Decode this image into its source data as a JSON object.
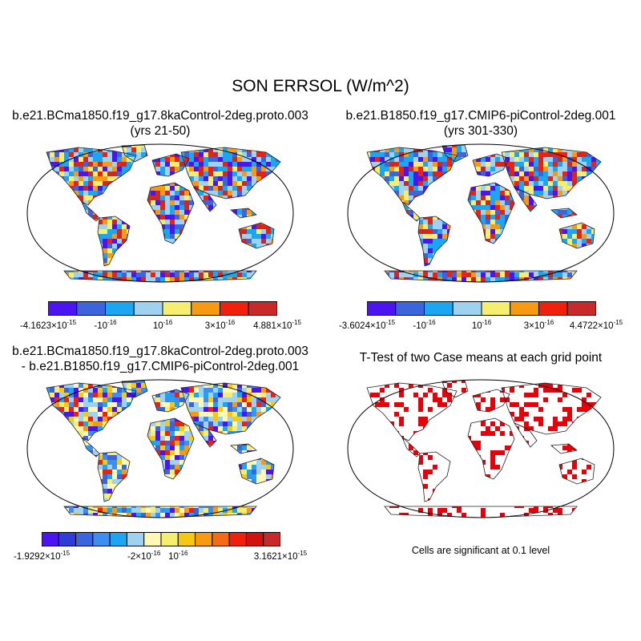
{
  "title": "SON ERRSOL (W/m^2)",
  "panels": [
    {
      "title_line1": "b.e21.BCma1850.f19_g17.8kaControl-2deg.proto.003",
      "title_line2": "(yrs 21-50)",
      "colorbar": {
        "colors": [
          "#4b14f0",
          "#3c64dc",
          "#1aa6f0",
          "#9ed2ee",
          "#f6ee6e",
          "#f79a12",
          "#f0200e",
          "#c82a2a"
        ],
        "labels": [
          {
            "mantissa": "-4.1623×10",
            "exp": "-15"
          },
          {
            "mantissa": "-10",
            "exp": "-16"
          },
          {
            "mantissa": "10",
            "exp": "-16"
          },
          {
            "mantissa": "3×10",
            "exp": "-16"
          },
          {
            "mantissa": "4.881×10",
            "exp": "-15"
          }
        ]
      }
    },
    {
      "title_line1": "b.e21.B1850.f19_g17.CMIP6-piControl-2deg.001",
      "title_line2": "(yrs 301-330)",
      "colorbar": {
        "colors": [
          "#4b14f0",
          "#3c64dc",
          "#1aa6f0",
          "#9ed2ee",
          "#f6ee6e",
          "#f79a12",
          "#f0200e",
          "#c82a2a"
        ],
        "labels": [
          {
            "mantissa": "-3.6024×10",
            "exp": "-15"
          },
          {
            "mantissa": "-10",
            "exp": "-16"
          },
          {
            "mantissa": "10",
            "exp": "-16"
          },
          {
            "mantissa": "3×10",
            "exp": "-16"
          },
          {
            "mantissa": "4.4722×10",
            "exp": "-15"
          }
        ]
      }
    },
    {
      "title_line1": "b.e21.BCma1850.f19_g17.8kaControl-2deg.proto.003",
      "title_line2": "- b.e21.B1850.f19_g17.CMIP6-piControl-2deg.001",
      "colorbar": {
        "colors": [
          "#4b14f0",
          "#2f3cd8",
          "#3c64dc",
          "#3c8ef0",
          "#1aa6f0",
          "#9ed2ee",
          "#fff7b4",
          "#f6ee6e",
          "#f7c812",
          "#f79a12",
          "#f56a12",
          "#f0200e",
          "#d2120e",
          "#c82a2a"
        ],
        "labels": [
          {
            "mantissa": "-1.9292×10",
            "exp": "-15"
          },
          {
            "mantissa": "-2×10",
            "exp": "-16"
          },
          {
            "mantissa": "10",
            "exp": "-16"
          },
          {
            "mantissa": "3.1621×10",
            "exp": "-15"
          }
        ]
      }
    },
    {
      "title_line1": "T-Test of two Case means at each grid point",
      "note": "Cells are significant at 0.1 level"
    }
  ]
}
